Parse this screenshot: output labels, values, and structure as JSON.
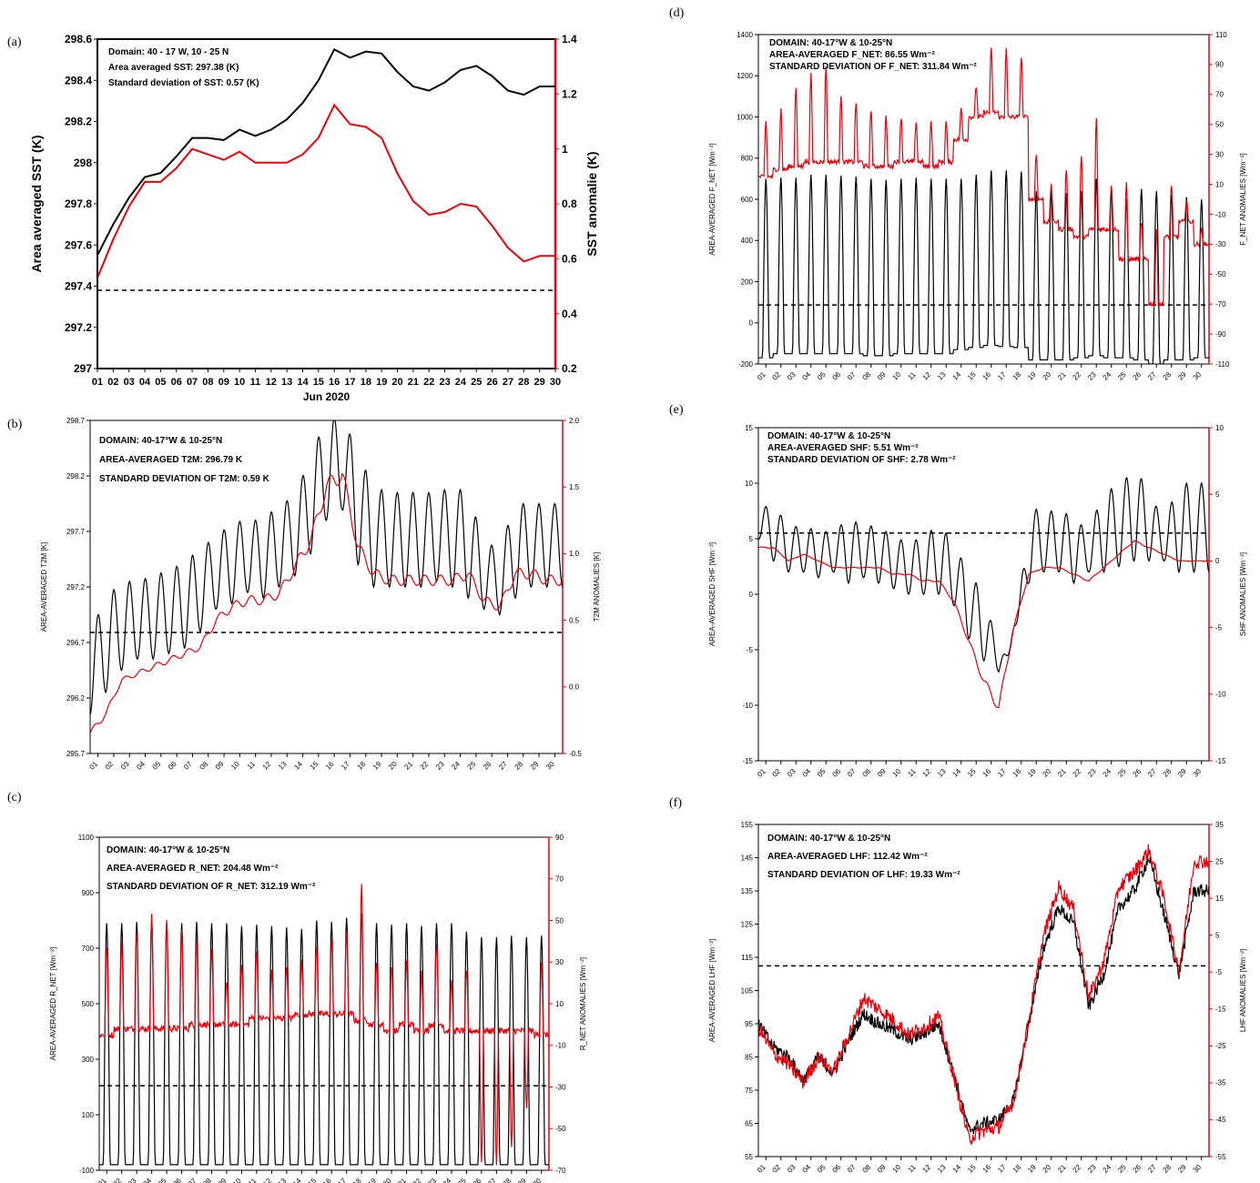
{
  "colors": {
    "black_series": "#000000",
    "red_series": "#e8000b",
    "mean_line": "#000000"
  },
  "days": [
    "01",
    "02",
    "03",
    "04",
    "05",
    "06",
    "07",
    "08",
    "09",
    "10",
    "11",
    "12",
    "13",
    "14",
    "15",
    "16",
    "17",
    "18",
    "19",
    "20",
    "21",
    "22",
    "23",
    "24",
    "25",
    "26",
    "27",
    "28",
    "29",
    "30"
  ],
  "chart_data": [
    {
      "panel": "(a)",
      "type": "line",
      "annotations": [
        "Domain: 40 - 17 W, 10 - 25 N",
        "Area averaged SST: 297.38 (K)",
        "Standard deviation of SST: 0.57 (K)"
      ],
      "xlabel": "Jun 2020",
      "ylabel": "Area averaged SST (K)",
      "ylabel_right": "SST anomalie (K)",
      "ylim": [
        297,
        298.6
      ],
      "ylim_right": [
        0.2,
        1.4
      ],
      "yticks": [
        "297",
        "297.2",
        "297.4",
        "297.6",
        "297.8",
        "298",
        "298.2",
        "298.4",
        "298.6"
      ],
      "yticks_right": [
        "0.2",
        "0.4",
        "0.6",
        "0.8",
        "1",
        "1.2",
        "1.4"
      ],
      "mean": 297.38,
      "hourly": false,
      "series": [
        {
          "axis": "left",
          "color": "#000000",
          "values": [
            297.55,
            297.7,
            297.83,
            297.93,
            297.95,
            298.03,
            298.12,
            298.12,
            298.11,
            298.16,
            298.13,
            298.16,
            298.21,
            298.29,
            298.4,
            298.55,
            298.51,
            298.54,
            298.53,
            298.44,
            298.37,
            298.35,
            298.39,
            298.45,
            298.47,
            298.42,
            298.35,
            298.33,
            298.37,
            298.37
          ]
        },
        {
          "axis": "right",
          "color": "#e8000b",
          "values": [
            0.53,
            0.67,
            0.79,
            0.88,
            0.88,
            0.93,
            1.0,
            0.98,
            0.96,
            0.99,
            0.95,
            0.95,
            0.95,
            0.98,
            1.04,
            1.16,
            1.09,
            1.08,
            1.04,
            0.91,
            0.81,
            0.76,
            0.77,
            0.8,
            0.79,
            0.72,
            0.64,
            0.59,
            0.61,
            0.61
          ]
        }
      ]
    },
    {
      "panel": "(b)",
      "type": "line",
      "annotations": [
        "DOMAIN: 40-17°W & 10-25°N",
        "AREA-AVERAGED T2M: 296.79 K",
        "STANDARD DEVIATION OF T2M: 0.59 K"
      ],
      "ylabel": "AREA-AVERAGED T2M [K]",
      "ylabel_right": "T2M ANOMALIES [K]",
      "ylim": [
        295.7,
        298.7
      ],
      "ylim_right": [
        -0.5,
        2.0
      ],
      "yticks": [
        "295.7",
        "296.2",
        "296.7",
        "297.2",
        "297.7",
        "298.2",
        "298.7"
      ],
      "yticks_right": [
        "-0.5",
        "0.0",
        "0.5",
        "1.0",
        "1.5",
        "2.0"
      ],
      "mean": 296.79,
      "hourly": true,
      "series": [
        {
          "axis": "left",
          "color": "#000000",
          "kind": "diurnal",
          "day_min": [
            296.05,
            296.25,
            296.45,
            296.55,
            296.55,
            296.6,
            296.65,
            296.8,
            297.0,
            297.05,
            297.15,
            297.1,
            297.2,
            297.3,
            297.5,
            297.8,
            297.9,
            297.4,
            297.2,
            297.2,
            297.2,
            297.2,
            297.25,
            297.2,
            297.1,
            297.0,
            296.95,
            297.1,
            297.2,
            297.2
          ],
          "day_max": [
            296.8,
            297.1,
            297.25,
            297.25,
            297.3,
            297.35,
            297.42,
            297.55,
            297.65,
            297.78,
            297.8,
            297.8,
            297.95,
            298.0,
            298.4,
            298.7,
            298.75,
            298.4,
            298.1,
            298.05,
            298.05,
            298.05,
            298.05,
            298.1,
            298.05,
            297.6,
            297.55,
            297.95,
            297.95,
            297.95
          ]
        },
        {
          "axis": "right",
          "color": "#e8000b",
          "kind": "smooth",
          "values": [
            -0.35,
            -0.2,
            0.05,
            0.1,
            0.15,
            0.2,
            0.25,
            0.3,
            0.5,
            0.6,
            0.65,
            0.65,
            0.7,
            0.9,
            1.1,
            1.5,
            1.6,
            1.05,
            0.85,
            0.8,
            0.8,
            0.8,
            0.8,
            0.8,
            0.85,
            0.65,
            0.6,
            0.85,
            0.85,
            0.8
          ]
        }
      ]
    },
    {
      "panel": "(c)",
      "type": "line",
      "annotations": [
        "DOMAIN: 40-17°W & 10-25°N",
        "AREA-AVERAGED R_NET: 204.48 Wm⁻²",
        "STANDARD DEVIATION OF R_NET: 312.19 Wm⁻²"
      ],
      "ylabel": "AREA-AVERAGED R_NET [Wm⁻²]",
      "ylabel_right": "R_NET ANOMALIES [Wm⁻²]",
      "ylim": [
        -100,
        1100
      ],
      "ylim_right": [
        -70,
        90
      ],
      "yticks": [
        "-100",
        "100",
        "300",
        "500",
        "700",
        "900",
        "1100"
      ],
      "yticks_right": [
        "-70",
        "-50",
        "-30",
        "-10",
        "10",
        "30",
        "50",
        "70",
        "90"
      ],
      "mean": 204.48,
      "hourly": true,
      "series": [
        {
          "axis": "left",
          "color": "#000000",
          "kind": "diurnal_pulse",
          "day_min": [
            -80,
            -80,
            -80,
            -80,
            -80,
            -80,
            -80,
            -80,
            -80,
            -80,
            -80,
            -80,
            -80,
            -80,
            -80,
            -80,
            -80,
            -80,
            -80,
            -80,
            -80,
            -80,
            -80,
            -80,
            -80,
            -80,
            -80,
            -80,
            -80,
            -80
          ],
          "day_max": [
            790,
            790,
            795,
            805,
            795,
            790,
            795,
            790,
            790,
            780,
            785,
            780,
            775,
            770,
            800,
            795,
            810,
            825,
            790,
            785,
            790,
            780,
            790,
            790,
            760,
            740,
            740,
            745,
            740,
            745
          ]
        },
        {
          "axis": "right",
          "color": "#e8000b",
          "kind": "pulse_anom",
          "base": [
            -5,
            -2,
            -2,
            -2,
            -2,
            -2,
            0,
            0,
            0,
            0,
            3,
            3,
            3,
            5,
            5,
            5,
            5,
            2,
            0,
            -3,
            0,
            -3,
            0,
            -3,
            -3,
            -3,
            -3,
            -3,
            -3,
            -5
          ],
          "peak": [
            38,
            40,
            45,
            52,
            50,
            45,
            40,
            35,
            20,
            30,
            35,
            25,
            28,
            30,
            38,
            40,
            45,
            68,
            30,
            28,
            30,
            25,
            40,
            20,
            25,
            -65,
            -68,
            -60,
            -40,
            30
          ]
        }
      ]
    },
    {
      "panel": "(d)",
      "type": "line",
      "annotations": [
        "DOMAIN: 40-17°W & 10-25°N",
        "AREA-AVERAGED F_NET: 86.55 Wm⁻²",
        "STANDARD DEVIATION OF F_NET: 311.84 Wm⁻²"
      ],
      "ylabel": "AREA-AVERAGED F_NET [Wm⁻²]",
      "ylabel_right": "F_NET ANOMALIES [Wm⁻²]",
      "ylim": [
        -200,
        1400
      ],
      "ylim_right": [
        -110,
        110
      ],
      "yticks": [
        "-200",
        "0",
        "200",
        "400",
        "600",
        "800",
        "1000",
        "1200",
        "1400"
      ],
      "yticks_right": [
        "-110",
        "-90",
        "-70",
        "-50",
        "-30",
        "-10",
        "10",
        "30",
        "50",
        "70",
        "90",
        "110"
      ],
      "mean": 86.55,
      "hourly": true,
      "series": [
        {
          "axis": "left",
          "color": "#000000",
          "kind": "diurnal_pulse",
          "day_min": [
            -170,
            -150,
            -150,
            -150,
            -150,
            -150,
            -150,
            -160,
            -160,
            -150,
            -150,
            -150,
            -150,
            -130,
            -120,
            -110,
            -115,
            -120,
            -180,
            -180,
            -180,
            -170,
            -160,
            -170,
            -170,
            -180,
            -200,
            -180,
            -180,
            -170
          ],
          "day_max": [
            700,
            705,
            705,
            720,
            720,
            715,
            710,
            700,
            695,
            700,
            705,
            700,
            700,
            700,
            720,
            740,
            740,
            735,
            640,
            635,
            630,
            640,
            700,
            640,
            600,
            650,
            640,
            620,
            610,
            600
          ]
        },
        {
          "axis": "right",
          "color": "#e8000b",
          "kind": "pulse_anom",
          "base": [
            15,
            20,
            22,
            25,
            25,
            25,
            25,
            22,
            22,
            25,
            25,
            22,
            25,
            40,
            55,
            58,
            55,
            55,
            0,
            -15,
            -20,
            -25,
            -20,
            -20,
            -40,
            -40,
            -70,
            -25,
            -15,
            -30
          ],
          "peak": [
            52,
            60,
            75,
            83,
            90,
            70,
            65,
            60,
            55,
            55,
            52,
            52,
            52,
            60,
            75,
            100,
            100,
            95,
            30,
            10,
            20,
            30,
            55,
            10,
            10,
            -15,
            -20,
            10,
            0,
            -20
          ]
        }
      ]
    },
    {
      "panel": "(e)",
      "type": "line",
      "annotations": [
        "DOMAIN: 40-17°W & 10-25°N",
        "AREA-AVERAGED SHF: 5.51 Wm⁻²",
        "STANDARD DEVIATION OF SHF: 2.78 Wm⁻²"
      ],
      "ylabel": "AREA-AVERAGED SHF [Wm⁻²]",
      "ylabel_right": "SHF ANOMALIES [Wm⁻²]",
      "ylim": [
        -15,
        15
      ],
      "ylim_right": [
        -15,
        10
      ],
      "yticks": [
        "-15",
        "-10",
        "-5",
        "0",
        "5",
        "10",
        "15"
      ],
      "yticks_right": [
        "-15",
        "-10",
        "-5",
        "0",
        "5",
        "10"
      ],
      "mean": 5.51,
      "hourly": true,
      "series": [
        {
          "axis": "left",
          "color": "#000000",
          "kind": "diurnal",
          "day_min": [
            5,
            3,
            2,
            2,
            1.5,
            2,
            1,
            1.5,
            1,
            0.5,
            0,
            0,
            0,
            -1,
            -4,
            -6,
            -7,
            -3,
            1,
            2,
            2,
            1,
            2,
            2,
            2.5,
            3,
            3,
            3,
            2,
            2
          ],
          "day_max": [
            7.8,
            8,
            6.2,
            6,
            5.8,
            5.5,
            7,
            6,
            6.3,
            5,
            4.8,
            5,
            6.5,
            4.5,
            2,
            0,
            -5,
            -6,
            7.8,
            7.5,
            7.5,
            7,
            5.5,
            9.5,
            9.5,
            11.5,
            9.3,
            6.5,
            10,
            10
          ]
        },
        {
          "axis": "right",
          "color": "#e8000b",
          "kind": "smooth",
          "values": [
            1,
            1,
            0,
            0.5,
            0,
            -0.5,
            -0.5,
            -0.5,
            -0.5,
            -1,
            -1,
            -1.5,
            -1.5,
            -3,
            -6,
            -9,
            -11,
            -5,
            -1,
            -0.5,
            -0.5,
            -1,
            -1.5,
            -0.5,
            0.5,
            1.5,
            1,
            0.5,
            0,
            0
          ]
        }
      ]
    },
    {
      "panel": "(f)",
      "type": "line",
      "annotations": [
        "DOMAIN: 40-17°W & 10-25°N",
        "AREA-AVERAGED LHF: 112.42 Wm⁻²",
        "STANDARD DEVIATION OF LHF: 19.33 Wm⁻²"
      ],
      "ylabel": "AREA-AVERAGED LHF [Wm⁻²]",
      "ylabel_right": "LHF ANOMALIES [Wm⁻²]",
      "ylim": [
        55,
        155
      ],
      "ylim_right": [
        -55,
        35
      ],
      "yticks": [
        "55",
        "65",
        "75",
        "85",
        "95",
        "105",
        "115",
        "125",
        "135",
        "145",
        "155"
      ],
      "yticks_right": [
        "-55",
        "-45",
        "-35",
        "-25",
        "-15",
        "-5",
        "5",
        "15",
        "25",
        "35"
      ],
      "mean": 112.42,
      "hourly": true,
      "series": [
        {
          "axis": "left",
          "color": "#000000",
          "kind": "smooth_noisy",
          "values": [
            95,
            88,
            85,
            78,
            85,
            80,
            90,
            98,
            95,
            93,
            90,
            92,
            95,
            80,
            63,
            65,
            66,
            72,
            95,
            118,
            130,
            125,
            100,
            110,
            130,
            135,
            145,
            128,
            110,
            135
          ]
        },
        {
          "axis": "right",
          "color": "#e8000b",
          "kind": "smooth_noisy",
          "values": [
            -20,
            -27,
            -30,
            -35,
            -28,
            -32,
            -22,
            -12,
            -15,
            -18,
            -22,
            -20,
            -17,
            -33,
            -50,
            -48,
            -47,
            -40,
            -18,
            5,
            18,
            12,
            -12,
            -2,
            18,
            22,
            28,
            15,
            -5,
            25
          ]
        }
      ]
    }
  ]
}
